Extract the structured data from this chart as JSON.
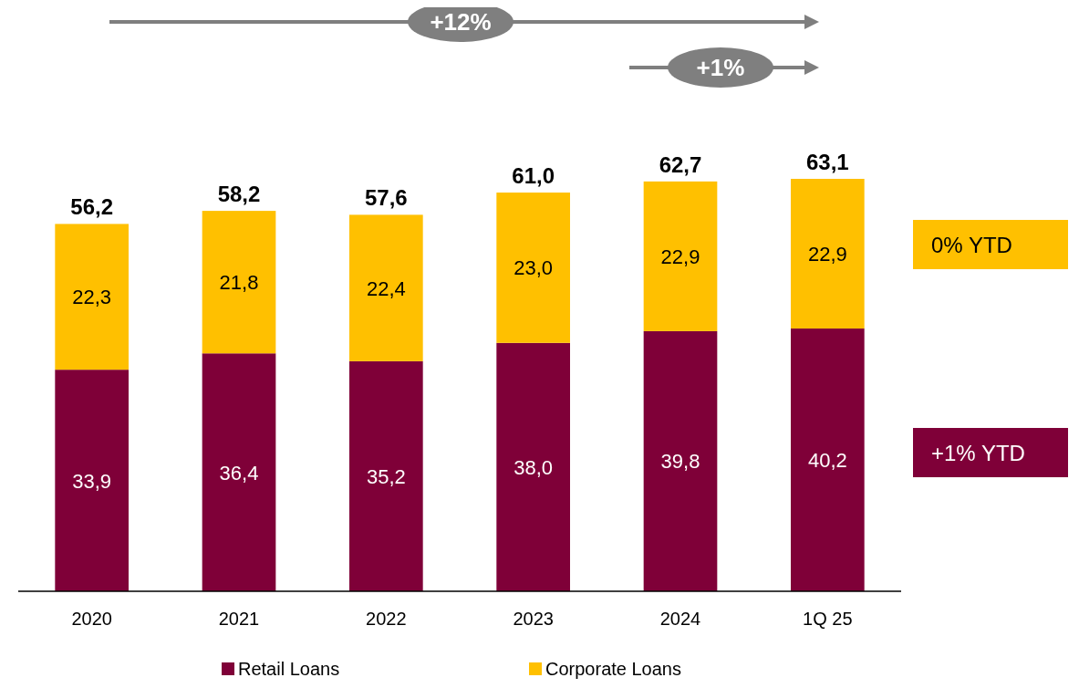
{
  "chart_data": {
    "type": "bar",
    "stacked": true,
    "categories": [
      "2020",
      "2021",
      "2022",
      "2023",
      "2024",
      "1Q 25"
    ],
    "series": [
      {
        "name": "Retail Loans",
        "color": "#7f0038",
        "values": [
          33.9,
          36.4,
          35.2,
          38.0,
          39.8,
          40.2
        ],
        "value_labels": [
          "33,9",
          "36,4",
          "35,2",
          "38,0",
          "39,8",
          "40,2"
        ]
      },
      {
        "name": "Corporate Loans",
        "color": "#ffc000",
        "values": [
          22.3,
          21.8,
          22.4,
          23.0,
          22.9,
          22.9
        ],
        "value_labels": [
          "22,3",
          "21,8",
          "22,4",
          "23,0",
          "22,9",
          "22,9"
        ]
      }
    ],
    "totals": [
      "56,2",
      "58,2",
      "57,6",
      "61,0",
      "62,7",
      "63,1"
    ],
    "tick_labels": "x",
    "legend": "bottom",
    "annotations": [
      "+12%",
      "+1%",
      "0% YTD",
      "+1% YTD"
    ]
  }
}
